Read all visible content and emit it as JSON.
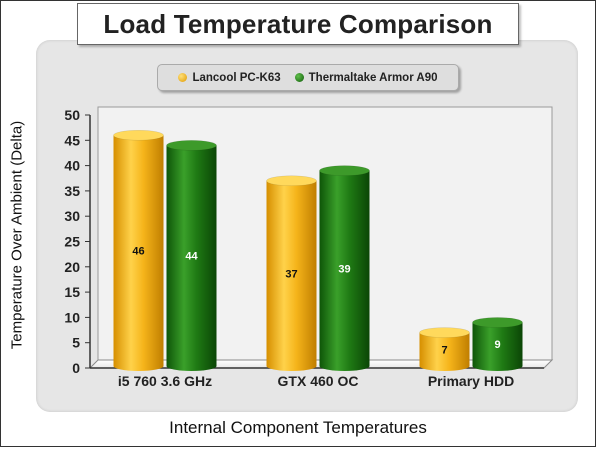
{
  "chart_data": {
    "type": "bar",
    "title": "Load Temperature Comparison",
    "xlabel": "Internal Component Temperatures",
    "ylabel": "Temperature Over Ambient (Delta)",
    "categories": [
      "i5 760 3.6 GHz",
      "GTX 460 OC",
      "Primary HDD"
    ],
    "series": [
      {
        "name": "Lancool PC-K63",
        "values": [
          46,
          37,
          7
        ],
        "color": "#f2b51c"
      },
      {
        "name": "Thermaltake Armor A90",
        "values": [
          44,
          39,
          9
        ],
        "color": "#1f7a14"
      }
    ],
    "ylim": [
      0,
      50
    ],
    "yticks": [
      0,
      5,
      10,
      15,
      20,
      25,
      30,
      35,
      40,
      45,
      50
    ],
    "legend_position": "top-center",
    "grid": false,
    "style": "3d-cylinder"
  }
}
